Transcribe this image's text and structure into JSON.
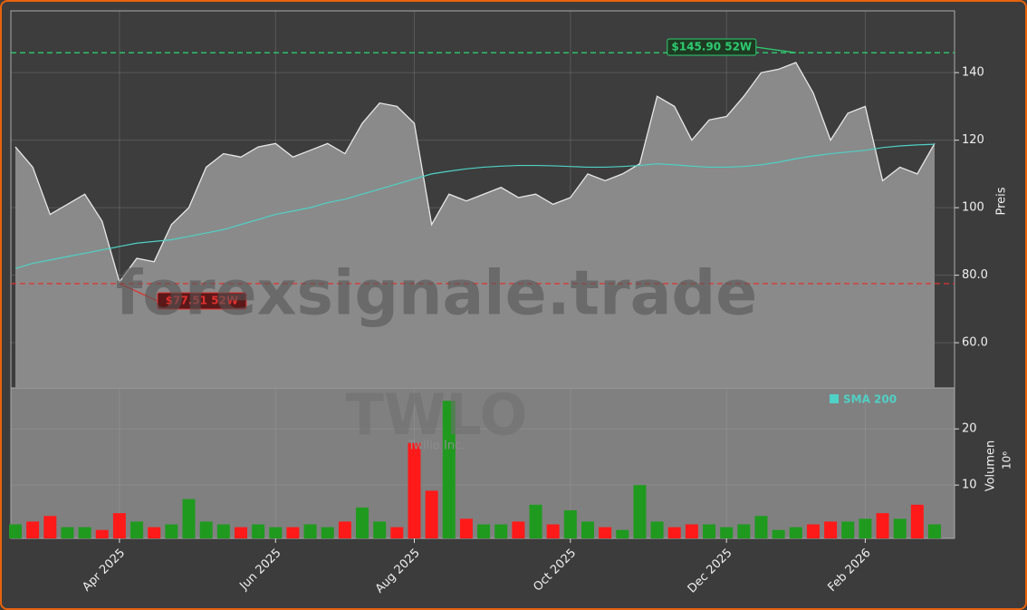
{
  "watermark": {
    "site": "forexsignale.trade",
    "symbol": "TWLO",
    "company": "Twilio Inc."
  },
  "chart_data": [
    {
      "type": "area",
      "ylabel": "Preis",
      "categories": [
        null,
        null,
        null,
        null,
        null,
        null,
        "Apr 2025",
        null,
        null,
        null,
        null,
        null,
        null,
        null,
        null,
        "Jun 2025",
        null,
        null,
        null,
        null,
        null,
        null,
        null,
        "Aug 2025",
        null,
        null,
        null,
        null,
        null,
        null,
        null,
        null,
        "Oct 2025",
        null,
        null,
        null,
        null,
        null,
        null,
        null,
        null,
        "Dec 2025",
        null,
        null,
        null,
        null,
        null,
        null,
        null,
        "Feb 2026",
        null,
        null,
        null,
        null
      ],
      "series": [
        {
          "color": "#e8e8e8",
          "fill": "#8a8a8a",
          "values": [
            118,
            112,
            98,
            101,
            104,
            96,
            78,
            85,
            84,
            95,
            100,
            112,
            116,
            115,
            118,
            119,
            115,
            117,
            119,
            116,
            125,
            131,
            130,
            125,
            95,
            104,
            102,
            104,
            106,
            103,
            104,
            101,
            103,
            110,
            108,
            110,
            113,
            133,
            130,
            120,
            126,
            127,
            133,
            140,
            141,
            143,
            134,
            120,
            128,
            130,
            108,
            112,
            110,
            119
          ]
        },
        {
          "name": "SMA 200",
          "type": "line",
          "color": "#4fd1c5",
          "values": [
            82,
            83.5,
            84.5,
            85.5,
            86.5,
            87.5,
            88.5,
            89.5,
            90,
            90.5,
            91.5,
            92.5,
            93.5,
            95,
            96.5,
            98,
            99,
            100,
            101.5,
            102.5,
            104,
            105.5,
            107,
            108.5,
            110,
            110.8,
            111.5,
            112,
            112.3,
            112.5,
            112.5,
            112.4,
            112.2,
            112,
            112,
            112.2,
            112.5,
            113,
            112.7,
            112.3,
            112,
            112,
            112.2,
            112.7,
            113.5,
            114.5,
            115.3,
            116,
            116.5,
            117,
            117.8,
            118.3,
            118.6,
            118.8
          ]
        }
      ],
      "ylim": [
        46.6,
        158.3
      ],
      "yticks": [
        {
          "value": 60,
          "label": "60.0"
        },
        {
          "value": 80,
          "label": "80.0"
        },
        100,
        120,
        140
      ],
      "grid": true,
      "annotations": [
        {
          "text": "$145.90 52W",
          "value": 145.9,
          "color": "#2ecc71",
          "extreme": "max"
        },
        {
          "text": "$77.51 52W",
          "value": 77.51,
          "color": "#e03030",
          "extreme": "min"
        }
      ]
    },
    {
      "type": "bar",
      "ylabel": "Volumen",
      "offset_text": "10⁶",
      "values": [
        3,
        3.5,
        4.5,
        2.5,
        2.5,
        2,
        5,
        3.5,
        2.5,
        3,
        7.5,
        3.5,
        3,
        2.5,
        3,
        2.5,
        2.5,
        3,
        2.5,
        3.5,
        6,
        3.5,
        2.5,
        17.5,
        9,
        25,
        4,
        3,
        3,
        3.5,
        6.5,
        3,
        5.5,
        3.5,
        2.5,
        2,
        10,
        3.5,
        2.5,
        3,
        3,
        2.5,
        3,
        4.5,
        2,
        2.5,
        3,
        3.5,
        3.5,
        4,
        5,
        4,
        6.5,
        3
      ],
      "up_color": "#1f9a1f",
      "down_color": "#ff1a1a",
      "ylim": [
        0.5,
        27.3
      ],
      "yticks": [
        10,
        20
      ],
      "grid": true
    }
  ]
}
